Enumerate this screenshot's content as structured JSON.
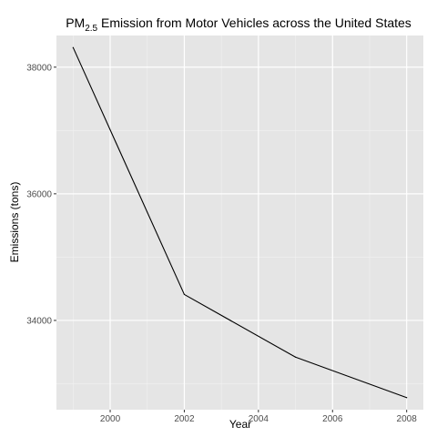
{
  "chart_data": {
    "type": "line",
    "title": {
      "prefix": "PM",
      "subscript": "2.5",
      "suffix": " Emission from Motor Vehicles across the United States"
    },
    "xlabel": "Year",
    "ylabel": "Emissions (tons)",
    "x": [
      1999,
      2002,
      2005,
      2008
    ],
    "series": [
      {
        "values": [
          38310,
          34410,
          33420,
          32780
        ],
        "color": "#000000"
      }
    ],
    "xlim": [
      1998.55,
      2008.45
    ],
    "ylim": [
      32590,
      38500
    ],
    "x_ticks": [
      2000,
      2002,
      2004,
      2006,
      2008
    ],
    "x_tick_labels": [
      "2000",
      "2002",
      "2004",
      "2006",
      "2008"
    ],
    "y_ticks": [
      34000,
      36000,
      38000
    ],
    "y_tick_labels": [
      "34000",
      "36000",
      "38000"
    ],
    "grid": true,
    "legend": "none",
    "colors": {
      "panel_background": "#e5e5e5",
      "grid_major": "#ffffff",
      "grid_minor": "#f2f2f2",
      "line": "#000000"
    }
  }
}
